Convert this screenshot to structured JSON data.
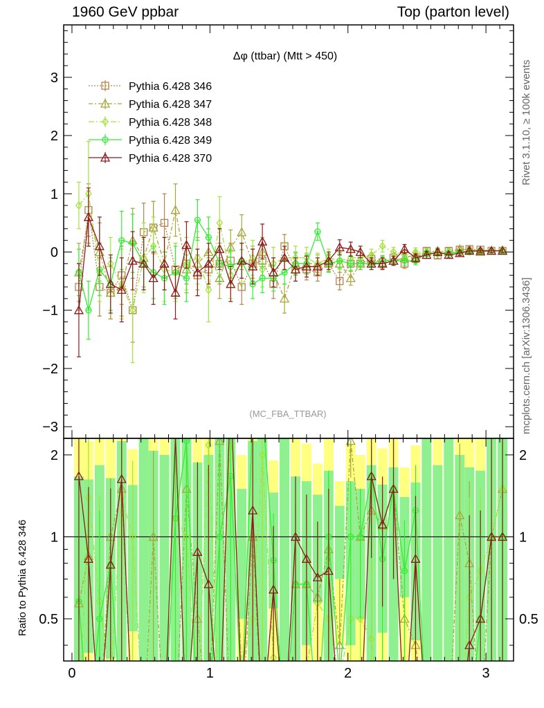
{
  "header": {
    "left": "1960 GeV ppbar",
    "right": "Top (parton level)"
  },
  "side": {
    "rivet": "Rivet 3.1.10, ≥ 100k events",
    "mcplots": "mcplots.cern.ch [arXiv:1306.3436]"
  },
  "chart_data": {
    "type": "line",
    "title": "Δφ (ttbar) (Mtt > 450)",
    "watermark": "(MC_FBA_TTBAR)",
    "ratio_ylabel": "Ratio to Pythia 6.428 346",
    "xlim": [
      -0.06,
      3.2
    ],
    "ylim": [
      -3.2,
      3.9
    ],
    "ratio_ylim": [
      0.35,
      2.3
    ],
    "x_ticks": [
      0,
      1,
      2,
      3
    ],
    "y_ticks": [
      -3,
      -2,
      -1,
      0,
      1,
      2,
      3
    ],
    "ratio_ticks": [
      0.5,
      1,
      2
    ],
    "x": [
      0.05,
      0.12,
      0.2,
      0.28,
      0.36,
      0.44,
      0.52,
      0.59,
      0.67,
      0.75,
      0.83,
      0.91,
      0.99,
      1.07,
      1.15,
      1.23,
      1.31,
      1.38,
      1.46,
      1.54,
      1.62,
      1.7,
      1.78,
      1.86,
      1.94,
      2.02,
      2.09,
      2.17,
      2.25,
      2.33,
      2.41,
      2.49,
      2.57,
      2.65,
      2.73,
      2.81,
      2.88,
      2.96,
      3.04,
      3.12
    ],
    "series": [
      {
        "name": "Pythia 6.428 346",
        "color": "#b5834a",
        "marker": "square",
        "dash": "2,2",
        "values": [
          -0.6,
          0.72,
          -0.6,
          -0.7,
          -0.4,
          -1.0,
          0.34,
          0.42,
          0.5,
          -0.3,
          -0.2,
          -0.4,
          -0.3,
          -0.2,
          -0.15,
          -0.6,
          -0.2,
          -0.15,
          -0.55,
          0.1,
          -0.3,
          -0.3,
          -0.35,
          -0.2,
          -0.5,
          -0.2,
          -0.2,
          -0.12,
          -0.18,
          -0.1,
          -0.2,
          -0.12,
          0.02,
          -0.06,
          0.02,
          0.04,
          0.05,
          0.04,
          0.02,
          0.02
        ],
        "errors": [
          0.4,
          0.45,
          0.5,
          0.45,
          0.5,
          0.55,
          0.5,
          0.45,
          0.5,
          0.45,
          0.35,
          0.35,
          0.3,
          0.35,
          0.3,
          0.3,
          0.25,
          0.25,
          0.25,
          0.2,
          0.2,
          0.18,
          0.15,
          0.15,
          0.15,
          0.12,
          0.1,
          0.1,
          0.1,
          0.08,
          0.08,
          0.07,
          0.06,
          0.05,
          0.05,
          0.04,
          0.04,
          0.03,
          0.03,
          0.03
        ]
      },
      {
        "name": "Pythia 6.428 347",
        "color": "#a6a63a",
        "marker": "triangle",
        "dash": "6,3,2,3",
        "values": [
          -0.35,
          0.6,
          0.0,
          -0.7,
          -0.6,
          0.2,
          -0.1,
          0.42,
          -0.2,
          0.72,
          -0.3,
          -0.2,
          0.0,
          -0.45,
          0.08,
          0.34,
          -0.2,
          0.0,
          -0.35,
          -0.8,
          -0.2,
          -0.2,
          -0.2,
          -0.18,
          -0.2,
          -0.45,
          -0.2,
          -0.15,
          -0.2,
          -0.15,
          -0.1,
          -0.05,
          0.0,
          0.02,
          0.0,
          0.05,
          0.04,
          0.0,
          0.02,
          0.03
        ],
        "errors": [
          0.5,
          0.45,
          0.5,
          0.45,
          0.5,
          0.55,
          0.5,
          0.45,
          0.45,
          0.45,
          0.4,
          0.45,
          0.4,
          0.35,
          0.3,
          0.3,
          0.3,
          0.25,
          0.25,
          0.25,
          0.2,
          0.18,
          0.15,
          0.15,
          0.15,
          0.12,
          0.1,
          0.1,
          0.1,
          0.08,
          0.08,
          0.07,
          0.06,
          0.05,
          0.05,
          0.04,
          0.04,
          0.03,
          0.03,
          0.03
        ]
      },
      {
        "name": "Pythia 6.428 348",
        "color": "#a3e33c",
        "marker": "diamond",
        "dash": "8,3,2,3",
        "values": [
          0.8,
          1.0,
          -0.35,
          -0.2,
          -0.55,
          -1.0,
          -0.1,
          0.1,
          -0.3,
          -0.35,
          -0.2,
          -0.1,
          -0.65,
          0.5,
          -0.4,
          -0.2,
          -0.1,
          -0.3,
          -0.2,
          -0.1,
          -0.1,
          -0.1,
          -0.2,
          -0.1,
          -0.15,
          -0.1,
          -0.1,
          -0.05,
          0.1,
          0.0,
          -0.05,
          0.0,
          0.0,
          0.0,
          0.0,
          0.0,
          0.03,
          0.03,
          0.02,
          0.03
        ],
        "errors": [
          0.4,
          0.9,
          0.5,
          0.45,
          0.6,
          0.9,
          0.6,
          0.5,
          0.55,
          0.5,
          0.45,
          0.45,
          0.55,
          0.45,
          0.4,
          0.35,
          0.3,
          0.3,
          0.28,
          0.25,
          0.2,
          0.18,
          0.18,
          0.15,
          0.15,
          0.12,
          0.1,
          0.1,
          0.1,
          0.08,
          0.08,
          0.07,
          0.06,
          0.05,
          0.05,
          0.04,
          0.04,
          0.03,
          0.03,
          0.03
        ]
      },
      {
        "name": "Pythia 6.428 349",
        "color": "#33ee33",
        "marker": "circle",
        "dash": "",
        "values": [
          -0.35,
          -1.0,
          -0.3,
          -0.55,
          0.2,
          0.15,
          -0.2,
          -0.35,
          -0.45,
          -0.35,
          -0.45,
          0.55,
          0.25,
          -0.2,
          -0.25,
          -0.15,
          -0.55,
          -0.45,
          -0.45,
          -0.35,
          -0.2,
          -0.2,
          0.35,
          -0.2,
          -0.15,
          -0.2,
          -0.2,
          -0.2,
          -0.15,
          -0.15,
          -0.15,
          -0.15,
          -0.02,
          -0.02,
          -0.02,
          0.0,
          0.0,
          0.02,
          0.02,
          0.02
        ],
        "errors": [
          0.4,
          0.5,
          0.45,
          0.45,
          0.5,
          0.5,
          0.45,
          0.45,
          0.45,
          0.45,
          0.4,
          0.35,
          0.35,
          0.3,
          0.3,
          0.3,
          0.25,
          0.25,
          0.22,
          0.2,
          0.18,
          0.15,
          0.15,
          0.15,
          0.13,
          0.12,
          0.1,
          0.1,
          0.09,
          0.08,
          0.08,
          0.07,
          0.06,
          0.05,
          0.05,
          0.04,
          0.04,
          0.03,
          0.03,
          0.03
        ]
      },
      {
        "name": "Pythia 6.428 370",
        "color": "#8b1a1a",
        "marker": "triangle",
        "dash": "",
        "values": [
          -1.0,
          0.6,
          0.1,
          -0.55,
          -0.65,
          -0.15,
          -0.2,
          -0.45,
          -0.2,
          -0.7,
          0.12,
          -0.35,
          -0.2,
          0.05,
          -0.55,
          -0.15,
          -0.25,
          0.18,
          -0.35,
          -0.1,
          -0.3,
          -0.25,
          -0.25,
          -0.15,
          0.08,
          0.05,
          0.0,
          -0.2,
          -0.2,
          -0.15,
          0.05,
          -0.1,
          -0.05,
          0.0,
          -0.05,
          -0.02,
          0.02,
          0.02,
          0.02,
          0.02
        ],
        "errors": [
          0.8,
          0.5,
          0.5,
          0.5,
          0.55,
          0.5,
          0.45,
          0.45,
          0.45,
          0.45,
          0.4,
          0.4,
          0.35,
          0.35,
          0.3,
          0.3,
          0.3,
          0.3,
          0.25,
          0.2,
          0.2,
          0.18,
          0.15,
          0.15,
          0.13,
          0.12,
          0.1,
          0.1,
          0.1,
          0.08,
          0.08,
          0.07,
          0.06,
          0.05,
          0.05,
          0.04,
          0.04,
          0.03,
          0.03,
          0.03
        ]
      }
    ],
    "ratio_series": [
      {
        "name": "Pythia 6.428 347",
        "values": [
          0.57,
          0.85,
          0.0,
          1.0,
          1.5,
          -0.2,
          -0.3,
          1.0,
          -0.4,
          -2.4,
          1.5,
          0.5,
          0.0,
          2.25,
          -0.5,
          -0.6,
          1.0,
          0.0,
          0.64,
          -8.0,
          0.67,
          0.67,
          0.6,
          0.9,
          0.4,
          2.25,
          1.0,
          1.25,
          1.1,
          1.5,
          0.5,
          0.4,
          0.0,
          -0.3,
          0.0,
          1.2,
          0.8,
          0.0,
          1.0,
          1.5
        ]
      },
      {
        "name": "Pythia 6.428 348",
        "values": [
          -1.3,
          1.39,
          0.58,
          0.29,
          1.4,
          1.0,
          -0.3,
          0.24,
          -0.6,
          1.17,
          1.0,
          0.25,
          2.17,
          -2.5,
          2.67,
          0.33,
          0.5,
          2.0,
          0.36,
          -1.0,
          0.33,
          0.33,
          0.57,
          0.5,
          0.3,
          0.5,
          0.5,
          0.42,
          0.0,
          0.0,
          0.25,
          0.0,
          0.0,
          0.0,
          0.0,
          0.0,
          0.6,
          0.75,
          1.0,
          1.5
        ]
      },
      {
        "name": "Pythia 6.428 349",
        "values": [
          0.58,
          -1.39,
          0.5,
          0.79,
          -0.5,
          -0.15,
          -0.59,
          -0.83,
          -0.9,
          1.17,
          2.25,
          -1.38,
          -0.83,
          1.0,
          1.67,
          0.25,
          2.75,
          3.0,
          0.82,
          -3.5,
          0.67,
          0.67,
          -1.0,
          1.0,
          0.3,
          1.0,
          1.0,
          1.67,
          0.83,
          1.5,
          0.75,
          1.25,
          -1.0,
          0.33,
          -1.0,
          0.0,
          0.0,
          0.5,
          1.0,
          1.0
        ]
      },
      {
        "name": "Pythia 6.428 370",
        "values": [
          1.67,
          0.83,
          -0.17,
          0.79,
          1.63,
          0.15,
          -0.59,
          -1.07,
          -0.4,
          2.33,
          -0.6,
          0.88,
          0.67,
          -0.25,
          3.67,
          0.25,
          1.25,
          -1.2,
          0.64,
          -1.0,
          1.0,
          0.83,
          0.71,
          0.75,
          -0.16,
          -0.25,
          0.0,
          1.67,
          1.11,
          1.5,
          -0.25,
          0.83,
          -2.5,
          0.0,
          -2.5,
          -0.5,
          0.4,
          0.5,
          1.0,
          1.0
        ]
      }
    ]
  }
}
